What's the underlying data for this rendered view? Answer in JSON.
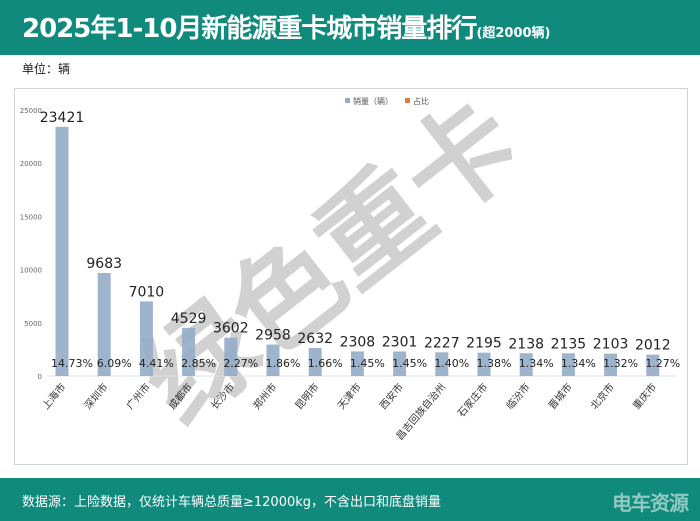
{
  "header": {
    "title": "2025年1-10月新能源重卡城市销量排行",
    "title_suffix": "(超2000辆)"
  },
  "unit_label": "单位：辆",
  "watermark": "绿色重卡",
  "footer": {
    "source": "数据源：上险数据，仅统计车辆总质量≥12000kg，不含出口和底盘销量",
    "logo": "电车资源"
  },
  "colors": {
    "header": "#0f8a7c",
    "bar": "#93abc6",
    "legend_pct": "#e07b39"
  },
  "chart_data": {
    "type": "bar",
    "title": "",
    "legend": [
      {
        "name": "销量（辆）",
        "color": "#93abc6"
      },
      {
        "name": "占比",
        "color": "#e07b39"
      }
    ],
    "legend_position": "top",
    "ylim": [
      0,
      25000
    ],
    "yticks": [
      0,
      5000,
      10000,
      15000,
      20000,
      25000
    ],
    "categories": [
      "上海市",
      "深圳市",
      "广州市",
      "成都市",
      "长沙市",
      "郑州市",
      "昆明市",
      "天津市",
      "西安市",
      "昌吉回族自治州",
      "石家庄市",
      "临汾市",
      "晋城市",
      "北京市",
      "重庆市"
    ],
    "series": [
      {
        "name": "销量（辆）",
        "values": [
          23421,
          9683,
          7010,
          4529,
          3602,
          2958,
          2632,
          2308,
          2301,
          2227,
          2195,
          2138,
          2135,
          2103,
          2012
        ]
      },
      {
        "name": "占比",
        "values": [
          "14.73%",
          "6.09%",
          "4.41%",
          "2.85%",
          "2.27%",
          "1.86%",
          "1.66%",
          "1.45%",
          "1.45%",
          "1.40%",
          "1.38%",
          "1.34%",
          "1.34%",
          "1.32%",
          "1.27%"
        ]
      }
    ],
    "grid": false
  }
}
